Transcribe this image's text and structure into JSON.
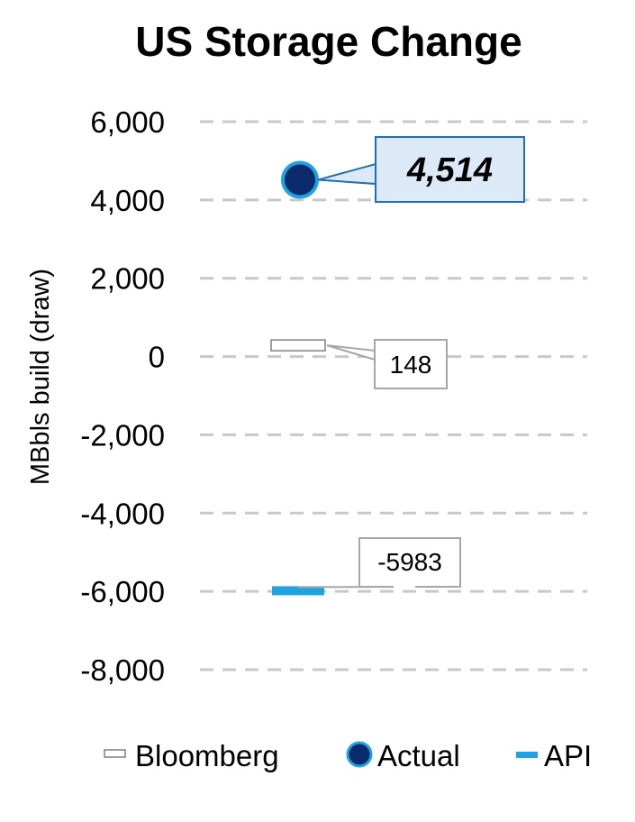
{
  "chart_data": {
    "type": "scatter",
    "title": "US Storage Change",
    "ylabel": "MBbls build (draw)",
    "xlabel": "",
    "ylim": [
      -8000,
      6000
    ],
    "yticks": [
      6000,
      4000,
      2000,
      0,
      -2000,
      -4000,
      -6000,
      -8000
    ],
    "ytick_labels": [
      "6,000",
      "4,000",
      "2,000",
      "0",
      "-2,000",
      "-4,000",
      "-6,000",
      "-8,000"
    ],
    "grid": "horizontal dashed",
    "legend_position": "bottom",
    "series": [
      {
        "name": "Bloomberg",
        "marker": "bar-outline",
        "value": 148,
        "label": "148",
        "color": "#ffffff",
        "stroke": "#7f7f7f"
      },
      {
        "name": "Actual",
        "marker": "circle",
        "value": 4514,
        "label": "4,514",
        "color": "#0b2a6b",
        "stroke": "#1fa3e0"
      },
      {
        "name": "API",
        "marker": "bar",
        "value": -5983,
        "label": "-5983",
        "color": "#1fa3e0",
        "stroke": "#1fa3e0"
      }
    ],
    "colors": {
      "actual_callout_fill": "#dce9f6",
      "actual_callout_border": "#1f6fb8",
      "callout_border": "#a6a6a6",
      "grid": "#c8c8c8"
    }
  }
}
